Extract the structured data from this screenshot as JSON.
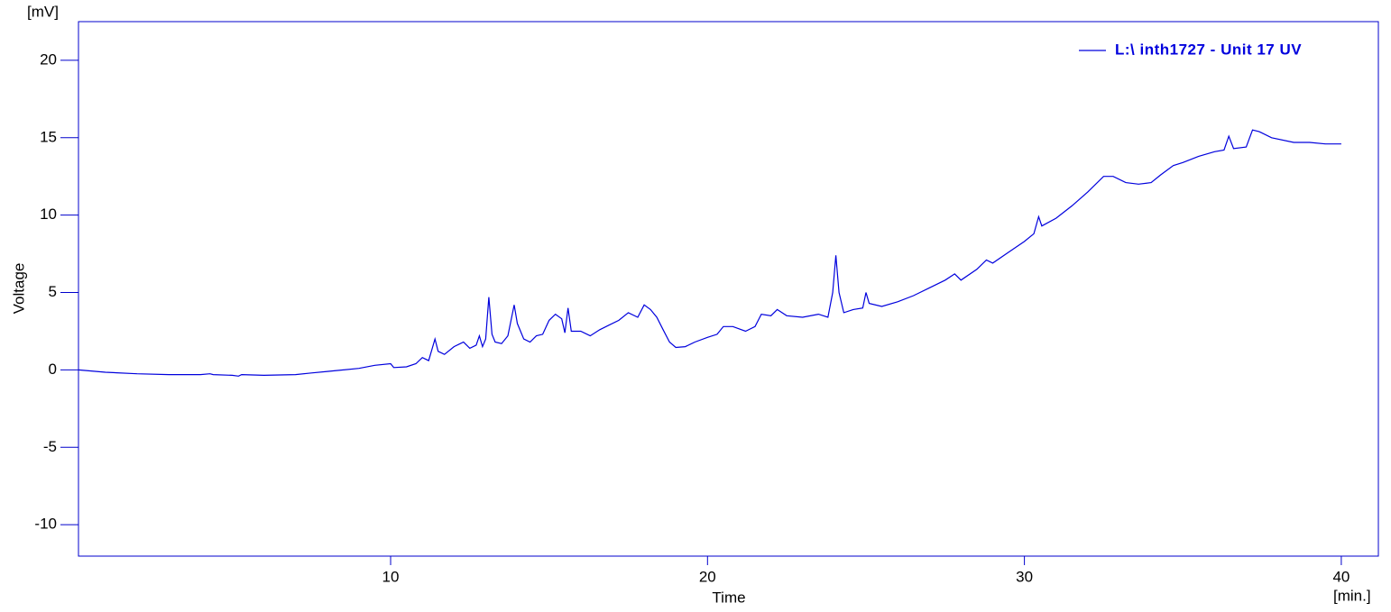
{
  "chart_data": {
    "type": "line",
    "y_unit_label": "[mV]",
    "y_axis_label": "Voltage",
    "x_axis_label": "Time",
    "x_unit_label": "[min.]",
    "xlim": [
      0.15,
      41.17
    ],
    "ylim": [
      -12.03,
      22.5
    ],
    "xticks": [
      10,
      20,
      30,
      40
    ],
    "yticks": [
      -10,
      -5,
      0,
      5,
      10,
      15,
      20
    ],
    "legend": "top-right",
    "x": [
      0.15,
      1,
      2,
      3,
      4,
      4.3,
      4.4,
      5,
      5.2,
      5.3,
      6,
      7,
      7.5,
      8,
      9,
      9.5,
      10,
      10.1,
      10.5,
      10.8,
      11,
      11.2,
      11.4,
      11.5,
      11.7,
      12,
      12.3,
      12.5,
      12.7,
      12.8,
      12.9,
      13.0,
      13.1,
      13.2,
      13.3,
      13.5,
      13.7,
      13.9,
      14.0,
      14.2,
      14.4,
      14.6,
      14.8,
      15.0,
      15.2,
      15.4,
      15.5,
      15.6,
      15.7,
      16,
      16.3,
      16.6,
      16.9,
      17.2,
      17.5,
      17.8,
      18.0,
      18.2,
      18.4,
      18.6,
      18.8,
      19.0,
      19.3,
      19.6,
      20,
      20.3,
      20.5,
      20.8,
      21.2,
      21.5,
      21.7,
      22,
      22.2,
      22.5,
      23,
      23.5,
      23.8,
      23.95,
      24.05,
      24.15,
      24.3,
      24.6,
      24.9,
      25.0,
      25.1,
      25.5,
      26,
      26.5,
      27,
      27.5,
      27.8,
      28,
      28.5,
      28.8,
      29,
      29.5,
      30,
      30.3,
      30.45,
      30.55,
      31,
      31.5,
      32,
      32.5,
      32.8,
      33.2,
      33.6,
      34,
      34.3,
      34.7,
      35,
      35.5,
      36,
      36.3,
      36.45,
      36.6,
      37,
      37.2,
      37.4,
      37.8,
      38.5,
      39,
      39.5,
      40
    ],
    "series": [
      {
        "name": "L:\\ inth1727 - Unit 17 UV",
        "color": "#0000dd",
        "values": [
          0.0,
          -0.15,
          -0.25,
          -0.3,
          -0.3,
          -0.25,
          -0.3,
          -0.35,
          -0.4,
          -0.3,
          -0.35,
          -0.3,
          -0.2,
          -0.1,
          0.1,
          0.3,
          0.4,
          0.15,
          0.2,
          0.4,
          0.8,
          0.6,
          2.0,
          1.2,
          1.0,
          1.5,
          1.8,
          1.4,
          1.6,
          2.2,
          1.5,
          2.0,
          4.7,
          2.3,
          1.8,
          1.7,
          2.2,
          4.2,
          3.0,
          2.0,
          1.8,
          2.2,
          2.3,
          3.2,
          3.6,
          3.3,
          2.4,
          4.0,
          2.5,
          2.5,
          2.2,
          2.6,
          2.9,
          3.2,
          3.7,
          3.4,
          4.2,
          3.9,
          3.4,
          2.6,
          1.8,
          1.45,
          1.5,
          1.8,
          2.1,
          2.3,
          2.8,
          2.8,
          2.5,
          2.8,
          3.6,
          3.5,
          3.9,
          3.5,
          3.4,
          3.6,
          3.4,
          5,
          7.4,
          5,
          3.7,
          3.9,
          4.0,
          5.0,
          4.3,
          4.1,
          4.4,
          4.8,
          5.3,
          5.8,
          6.2,
          5.8,
          6.5,
          7.1,
          6.9,
          7.6,
          8.3,
          8.8,
          9.9,
          9.3,
          9.8,
          10.6,
          11.5,
          12.5,
          12.5,
          12.1,
          12.0,
          12.1,
          12.6,
          13.2,
          13.4,
          13.8,
          14.1,
          14.2,
          15.1,
          14.3,
          14.4,
          15.5,
          15.4,
          15.0,
          14.7,
          14.7,
          14.6,
          14.6
        ]
      }
    ]
  }
}
